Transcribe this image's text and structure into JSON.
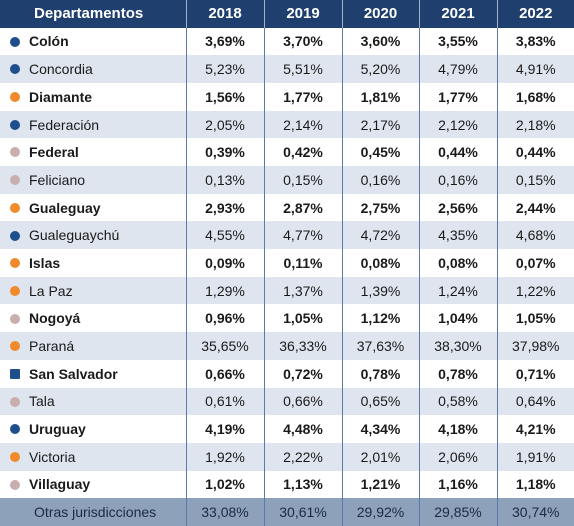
{
  "colors": {
    "header_bg": "#1f3f6e",
    "row_alt_bg": "#dfe5ee",
    "footer_bg": "#8ea1bb",
    "dot_blue": "#1f4e8c",
    "dot_orange": "#f08a2a",
    "dot_pink": "#c9aeae"
  },
  "headers": [
    "Departamentos",
    "2018",
    "2019",
    "2020",
    "2021",
    "2022"
  ],
  "rows": [
    {
      "name": "Colón",
      "dot": "#1f4e8c",
      "bold": true,
      "values": [
        "3,69%",
        "3,70%",
        "3,60%",
        "3,55%",
        "3,83%"
      ]
    },
    {
      "name": "Concordia",
      "dot": "#1f4e8c",
      "bold": false,
      "values": [
        "5,23%",
        "5,51%",
        "5,20%",
        "4,79%",
        "4,91%"
      ]
    },
    {
      "name": "Diamante",
      "dot": "#f08a2a",
      "bold": true,
      "values": [
        "1,56%",
        "1,77%",
        "1,81%",
        "1,77%",
        "1,68%"
      ]
    },
    {
      "name": "Federación",
      "dot": "#1f4e8c",
      "bold": false,
      "values": [
        "2,05%",
        "2,14%",
        "2,17%",
        "2,12%",
        "2,18%"
      ]
    },
    {
      "name": "Federal",
      "dot": "#c9aeae",
      "bold": true,
      "values": [
        "0,39%",
        "0,42%",
        "0,45%",
        "0,44%",
        "0,44%"
      ]
    },
    {
      "name": "Feliciano",
      "dot": "#c9aeae",
      "bold": false,
      "values": [
        "0,13%",
        "0,15%",
        "0,16%",
        "0,16%",
        "0,15%"
      ]
    },
    {
      "name": "Gualeguay",
      "dot": "#f08a2a",
      "bold": true,
      "values": [
        "2,93%",
        "2,87%",
        "2,75%",
        "2,56%",
        "2,44%"
      ]
    },
    {
      "name": "Gualeguaychú",
      "dot": "#1f4e8c",
      "bold": false,
      "values": [
        "4,55%",
        "4,77%",
        "4,72%",
        "4,35%",
        "4,68%"
      ]
    },
    {
      "name": "Islas",
      "dot": "#f08a2a",
      "bold": true,
      "values": [
        "0,09%",
        "0,11%",
        "0,08%",
        "0,08%",
        "0,07%"
      ]
    },
    {
      "name": "La Paz",
      "dot": "#f08a2a",
      "bold": false,
      "values": [
        "1,29%",
        "1,37%",
        "1,39%",
        "1,24%",
        "1,22%"
      ]
    },
    {
      "name": "Nogoyá",
      "dot": "#c9aeae",
      "bold": true,
      "values": [
        "0,96%",
        "1,05%",
        "1,12%",
        "1,04%",
        "1,05%"
      ]
    },
    {
      "name": "Paraná",
      "dot": "#f08a2a",
      "bold": false,
      "values": [
        "35,65%",
        "36,33%",
        "37,63%",
        "38,30%",
        "37,98%"
      ]
    },
    {
      "name": "San Salvador",
      "dot": "#1f4e8c",
      "bold": true,
      "square": true,
      "values": [
        "0,66%",
        "0,72%",
        "0,78%",
        "0,78%",
        "0,71%"
      ]
    },
    {
      "name": "Tala",
      "dot": "#c9aeae",
      "bold": false,
      "values": [
        "0,61%",
        "0,66%",
        "0,65%",
        "0,58%",
        "0,64%"
      ]
    },
    {
      "name": "Uruguay",
      "dot": "#1f4e8c",
      "bold": true,
      "values": [
        "4,19%",
        "4,48%",
        "4,34%",
        "4,18%",
        "4,21%"
      ]
    },
    {
      "name": "Victoria",
      "dot": "#f08a2a",
      "bold": false,
      "values": [
        "1,92%",
        "2,22%",
        "2,01%",
        "2,06%",
        "1,91%"
      ]
    },
    {
      "name": "Villaguay",
      "dot": "#c9aeae",
      "bold": true,
      "values": [
        "1,02%",
        "1,13%",
        "1,21%",
        "1,16%",
        "1,18%"
      ]
    }
  ],
  "other": {
    "name": "Otras jurisdicciones",
    "values": [
      "33,08%",
      "30,61%",
      "29,92%",
      "29,85%",
      "30,74%"
    ]
  }
}
